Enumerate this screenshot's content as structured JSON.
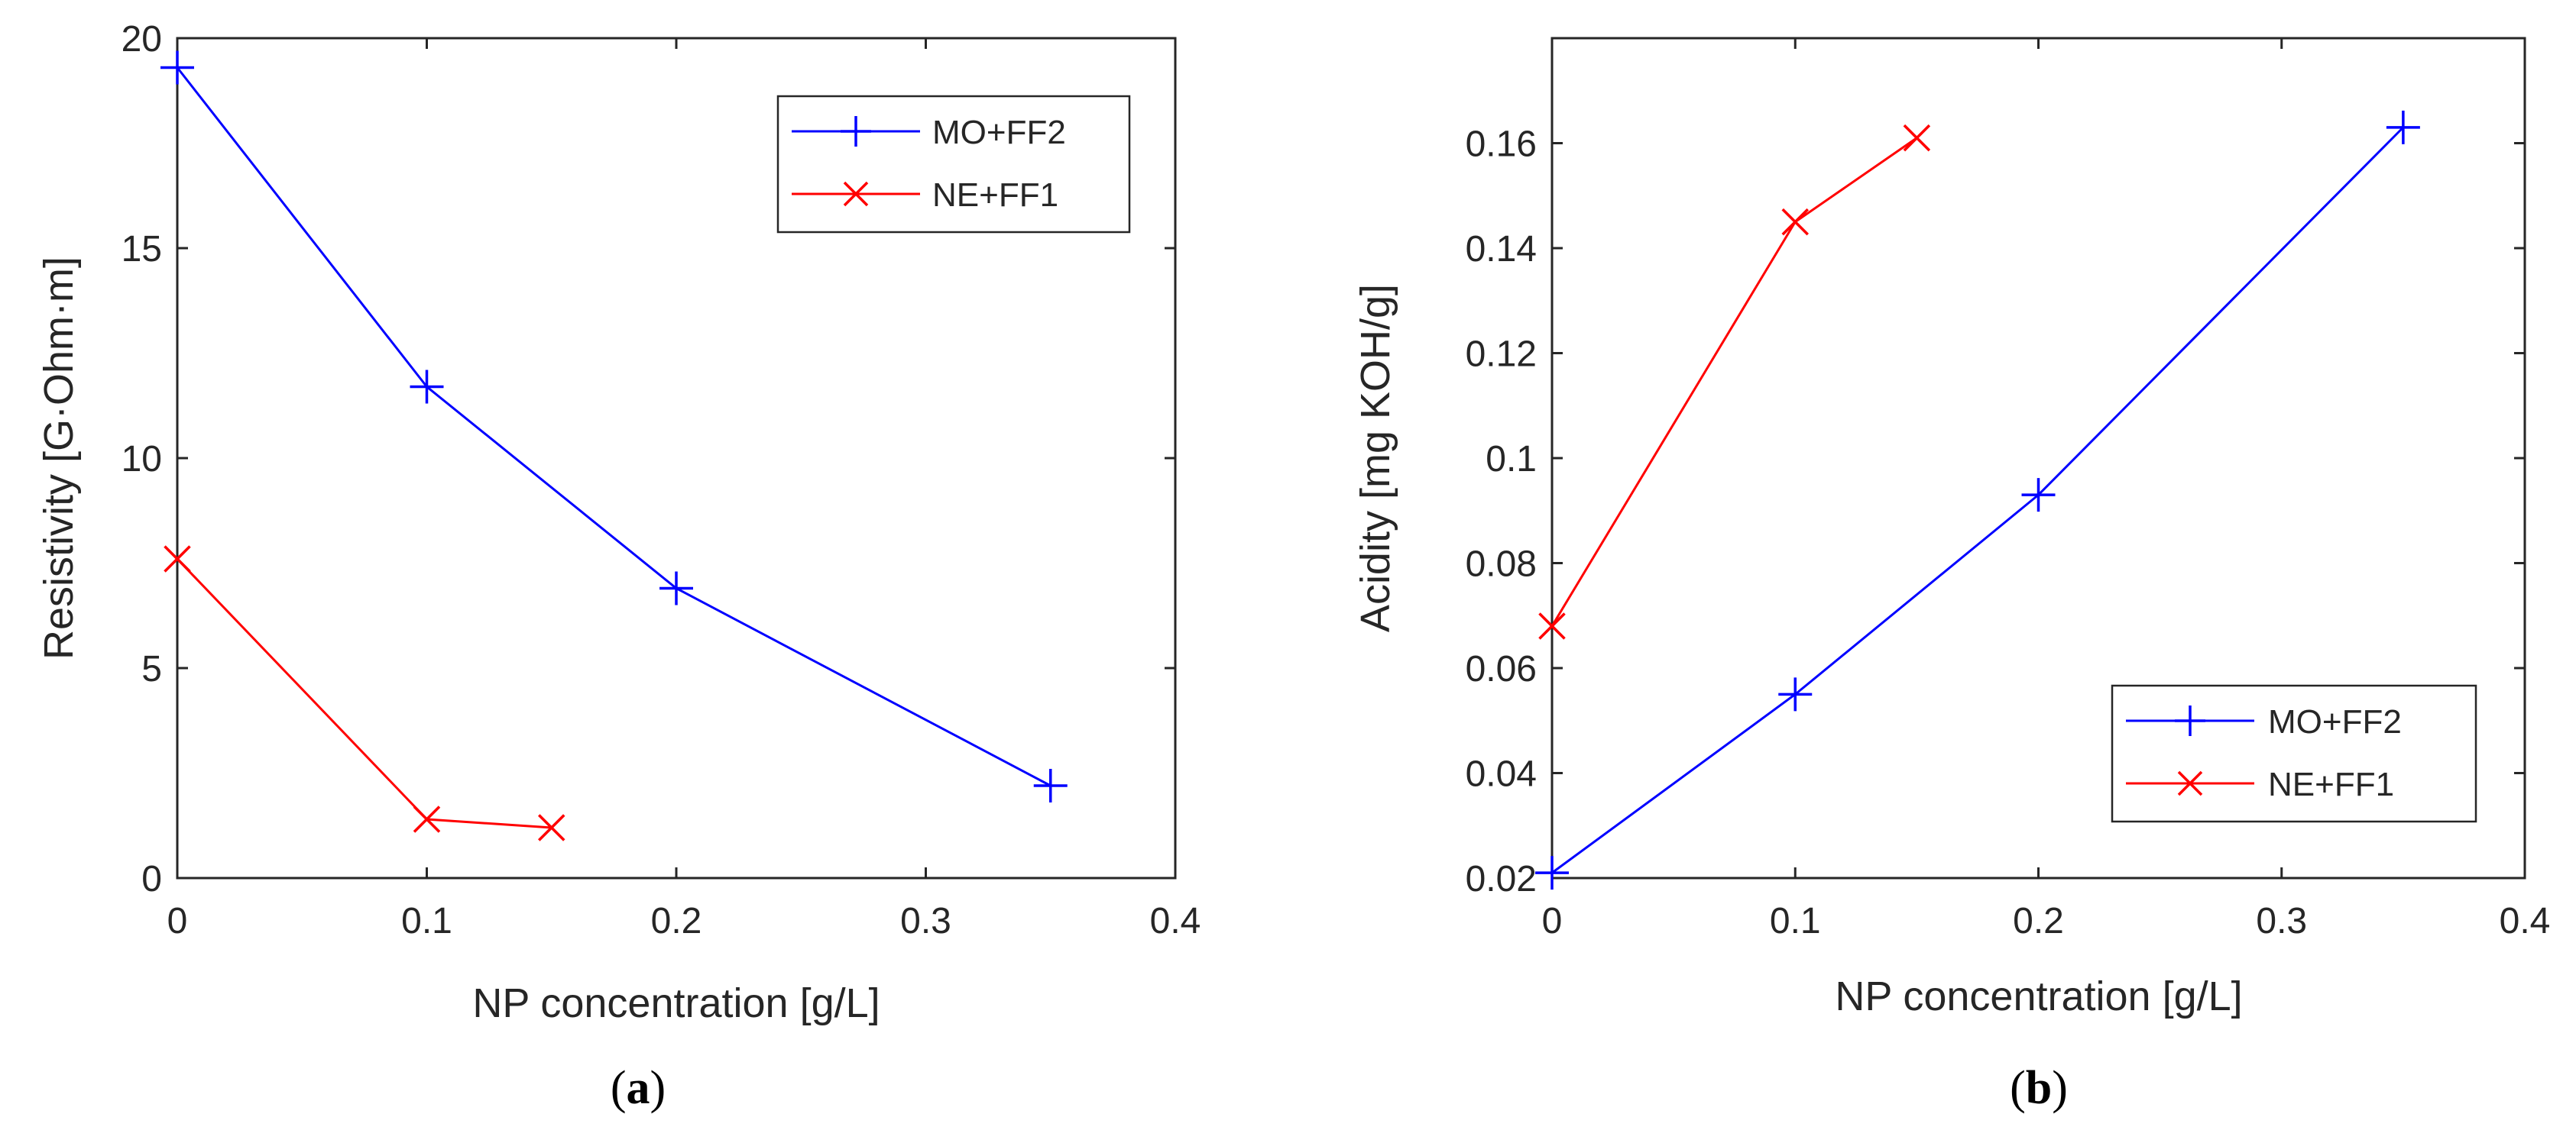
{
  "chart_data": [
    {
      "type": "line",
      "caption_open": "(",
      "caption_letter": "a",
      "caption_close": ")",
      "xlabel": "NP concentration [g/L]",
      "ylabel": "Resistivity [G·Ohm·m]",
      "xlim": [
        0,
        0.4
      ],
      "ylim": [
        0,
        20
      ],
      "xticks": [
        0,
        0.1,
        0.2,
        0.3,
        0.4
      ],
      "xtick_labels": [
        "0",
        "0.1",
        "0.2",
        "0.3",
        "0.4"
      ],
      "yticks": [
        0,
        5,
        10,
        15,
        20
      ],
      "ytick_labels": [
        "0",
        "5",
        "10",
        "15",
        "20"
      ],
      "legend_position": "top-right",
      "series": [
        {
          "name": "MO+FF2",
          "color": "#0000ff",
          "marker": "plus",
          "x": [
            0,
            0.1,
            0.2,
            0.35
          ],
          "y": [
            19.3,
            11.7,
            6.9,
            2.2
          ]
        },
        {
          "name": "NE+FF1",
          "color": "#ff0000",
          "marker": "x",
          "x": [
            0,
            0.1,
            0.15
          ],
          "y": [
            7.6,
            1.4,
            1.2
          ]
        }
      ]
    },
    {
      "type": "line",
      "caption_open": "(",
      "caption_letter": "b",
      "caption_close": ")",
      "xlabel": "NP concentration [g/L]",
      "ylabel": "Acidity [mg KOH/g]",
      "xlim": [
        0,
        0.4
      ],
      "ylim": [
        0.02,
        0.18
      ],
      "xticks": [
        0,
        0.1,
        0.2,
        0.3,
        0.4
      ],
      "xtick_labels": [
        "0",
        "0.1",
        "0.2",
        "0.3",
        "0.4"
      ],
      "yticks": [
        0.02,
        0.04,
        0.06,
        0.08,
        0.1,
        0.12,
        0.14,
        0.16
      ],
      "ytick_labels": [
        "0.02",
        "0.04",
        "0.06",
        "0.08",
        "0.1",
        "0.12",
        "0.14",
        "0.16"
      ],
      "legend_position": "bottom-right",
      "series": [
        {
          "name": "MO+FF2",
          "color": "#0000ff",
          "marker": "plus",
          "x": [
            0,
            0.1,
            0.2,
            0.35
          ],
          "y": [
            0.021,
            0.055,
            0.093,
            0.163
          ]
        },
        {
          "name": "NE+FF1",
          "color": "#ff0000",
          "marker": "x",
          "x": [
            0,
            0.1,
            0.15
          ],
          "y": [
            0.068,
            0.145,
            0.161
          ]
        }
      ]
    }
  ]
}
